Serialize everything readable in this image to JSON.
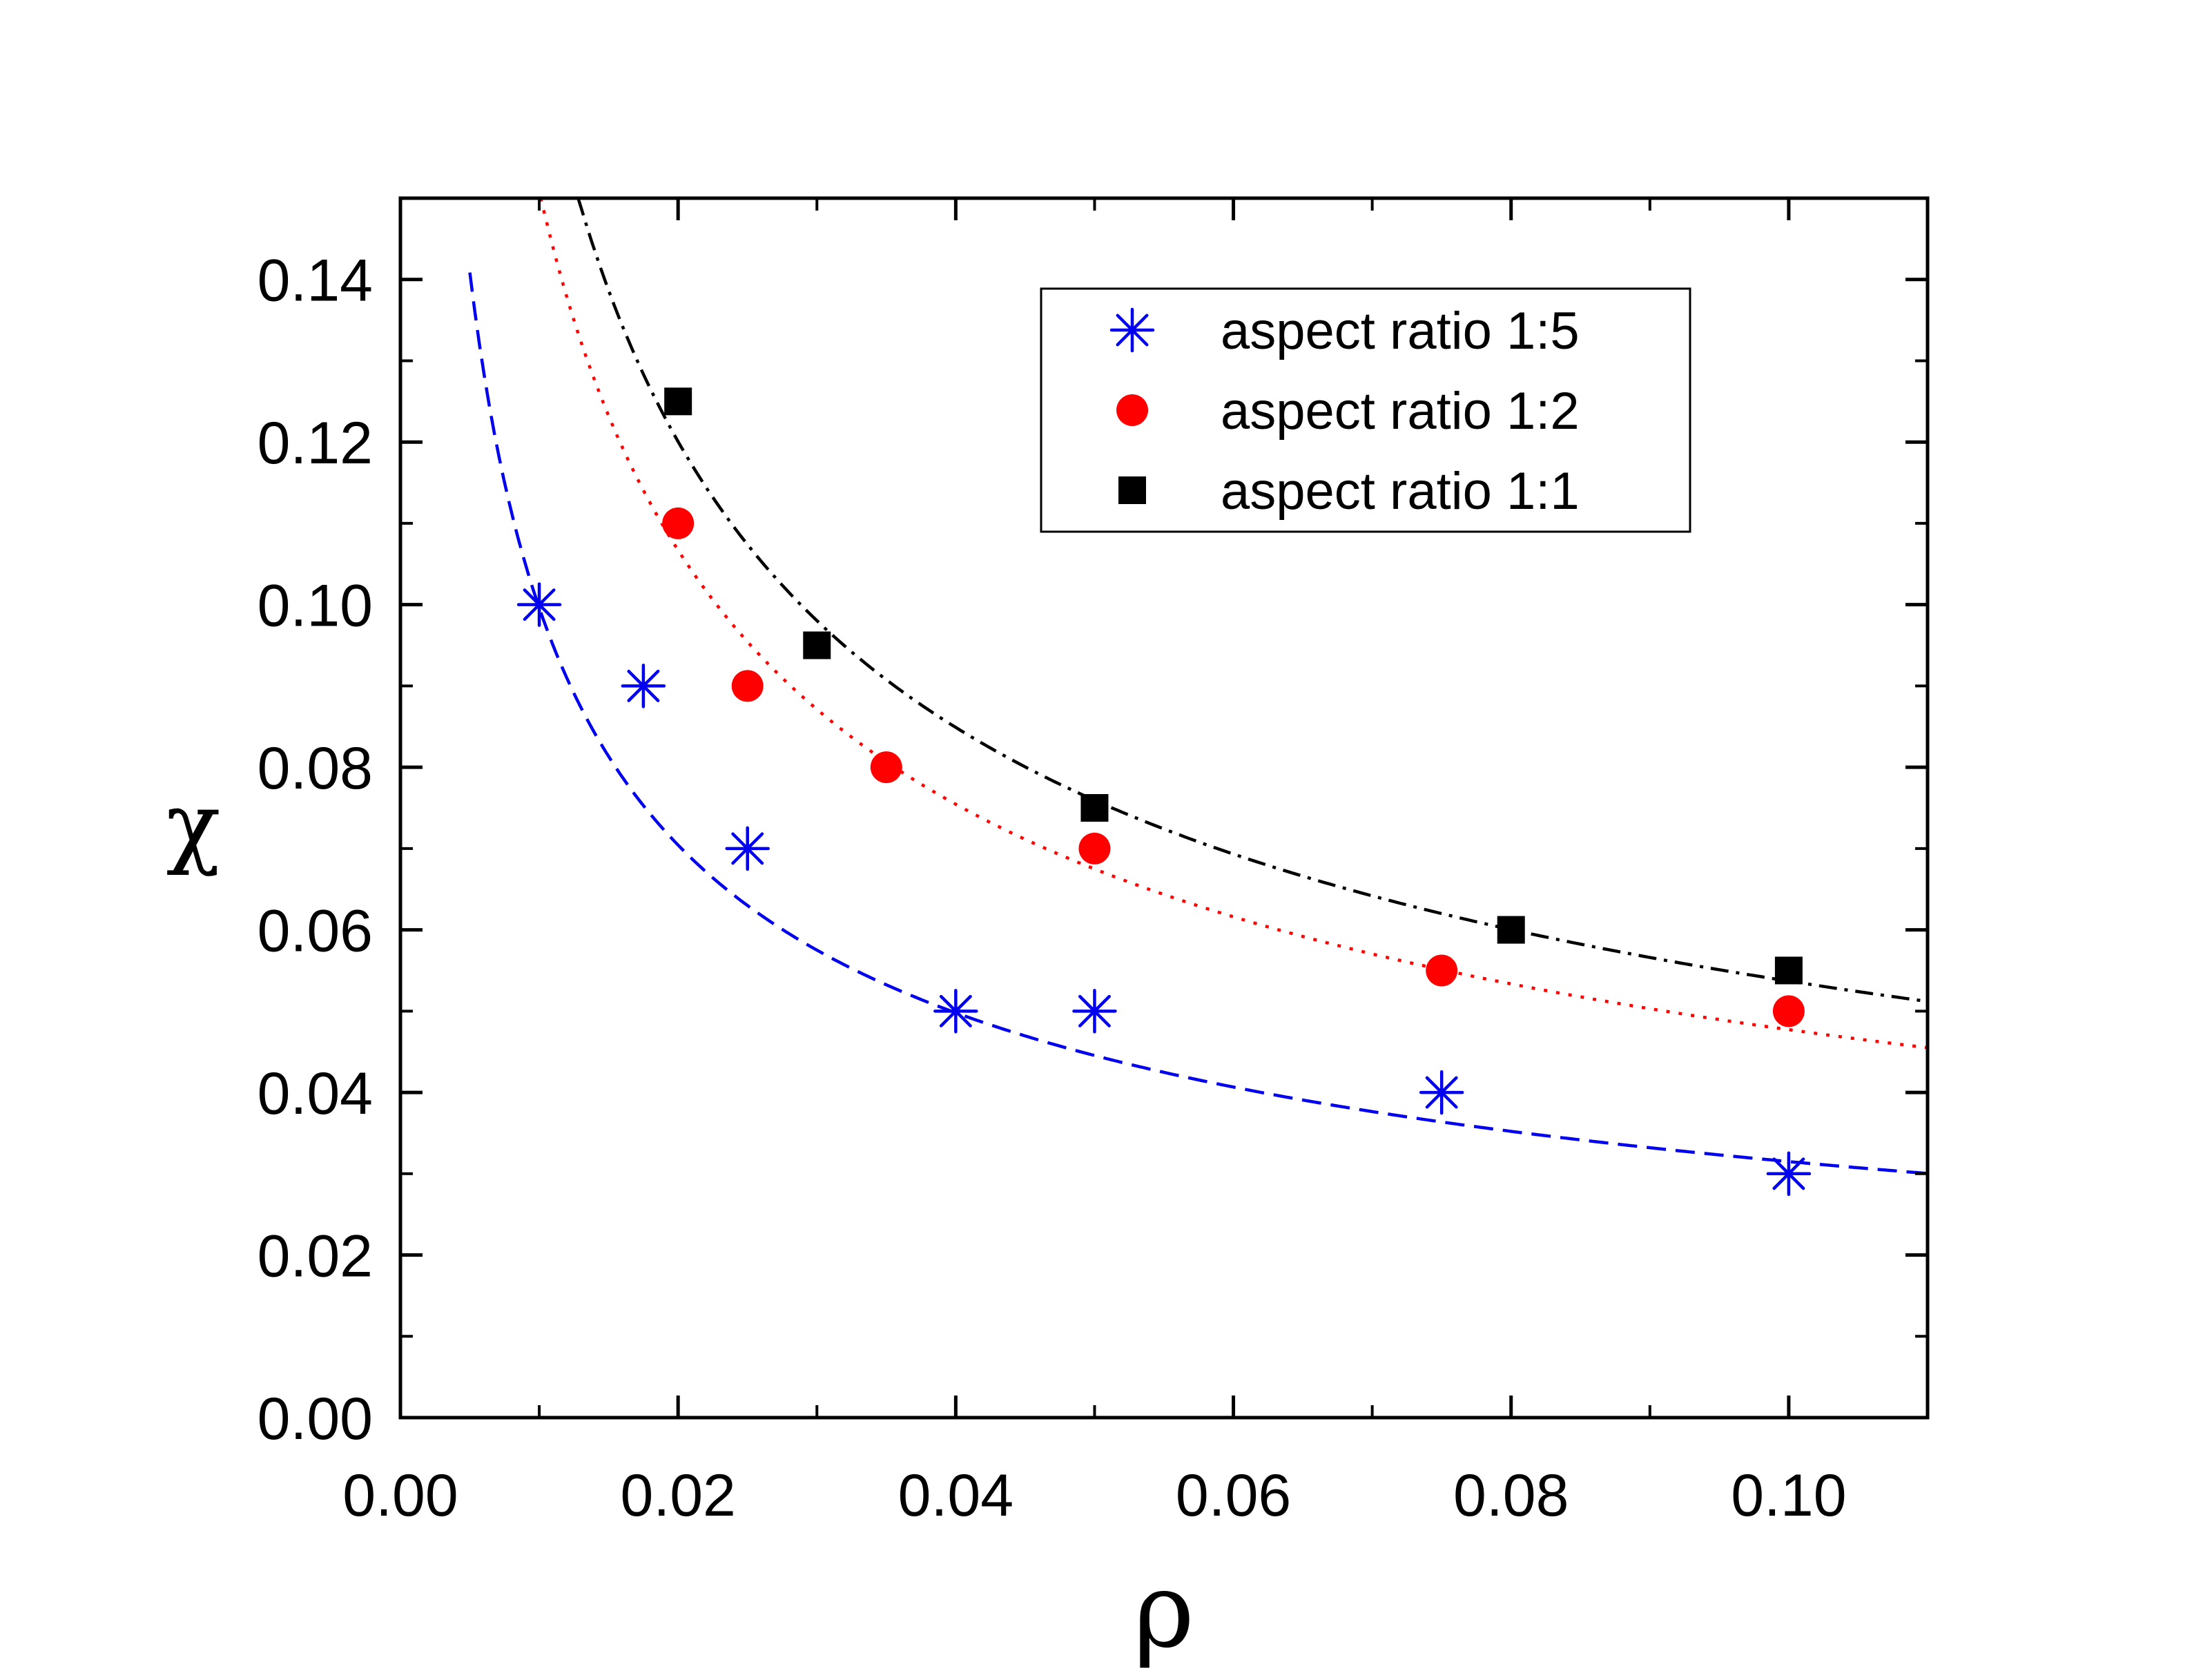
{
  "chart_data": {
    "type": "scatter",
    "title": "",
    "xlabel": "ρ",
    "ylabel": "χ",
    "xlim": [
      0.0,
      0.11
    ],
    "ylim": [
      0.0,
      0.15
    ],
    "x_ticks": [
      0.0,
      0.02,
      0.04,
      0.06,
      0.08,
      0.1
    ],
    "x_tick_labels": [
      "0.00",
      "0.02",
      "0.04",
      "0.06",
      "0.08",
      "0.10"
    ],
    "y_ticks": [
      0.0,
      0.02,
      0.04,
      0.06,
      0.08,
      0.1,
      0.12,
      0.14
    ],
    "y_tick_labels": [
      "0.00",
      "0.02",
      "0.04",
      "0.06",
      "0.08",
      "0.10",
      "0.12",
      "0.14"
    ],
    "legend_position": "top-right",
    "series": [
      {
        "name": "aspect ratio 1:5",
        "marker": "asterisk",
        "color": "#0000ee",
        "x": [
          0.01,
          0.0175,
          0.025,
          0.04,
          0.05,
          0.075,
          0.1
        ],
        "y": [
          0.1,
          0.09,
          0.07,
          0.05,
          0.05,
          0.04,
          0.03
        ],
        "fit": {
          "style": "dashed",
          "k": 0.00996,
          "exp": 0.5,
          "x_from": 0.005,
          "x_to": 0.11
        }
      },
      {
        "name": "aspect ratio 1:2",
        "marker": "circle",
        "color": "#ff0000",
        "x": [
          0.02,
          0.025,
          0.035,
          0.05,
          0.075,
          0.1
        ],
        "y": [
          0.11,
          0.09,
          0.08,
          0.07,
          0.055,
          0.05
        ],
        "fit": {
          "style": "dotted",
          "k": 0.01509,
          "exp": 0.5,
          "x_from": 0.0101,
          "x_to": 0.11
        }
      },
      {
        "name": "aspect ratio 1:1",
        "marker": "square",
        "color": "#000000",
        "x": [
          0.02,
          0.03,
          0.05,
          0.08,
          0.1
        ],
        "y": [
          0.125,
          0.095,
          0.075,
          0.06,
          0.055
        ],
        "fit": {
          "style": "dashdot",
          "k": 0.01698,
          "exp": 0.5,
          "x_from": 0.0128,
          "x_to": 0.11
        }
      }
    ]
  }
}
